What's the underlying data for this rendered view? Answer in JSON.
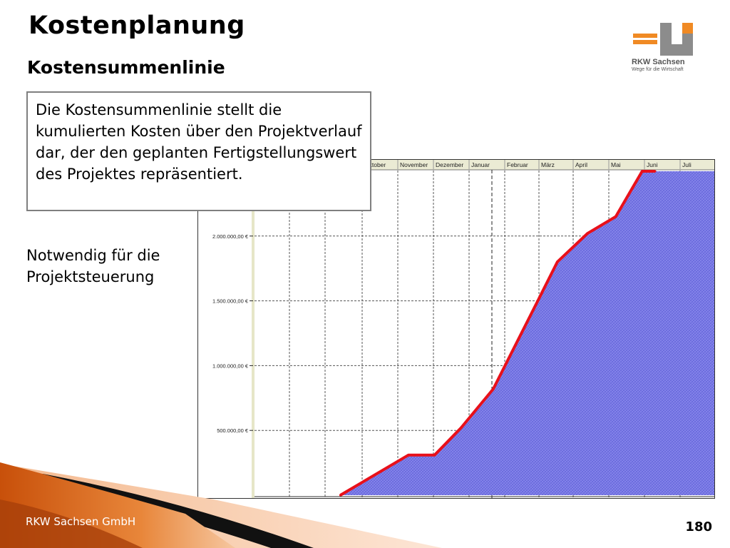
{
  "slide": {
    "title": "Kostenplanung",
    "subtitle": "Kostensummenlinie",
    "callout": "Die Kostensummenlinie stellt die kumulierten Kosten über den Projektverlauf dar, der den geplanten Fertigstellungswert des Projektes repräsentiert.",
    "note": "Notwendig für die Projektsteuerung",
    "footer": "RKW Sachsen GmbH",
    "page_number": "180"
  },
  "logo": {
    "name": "RKW Sachsen",
    "tagline": "Wege für die Wirtschaft"
  },
  "colors": {
    "accent_orange": "#e36c0a",
    "logo_orange": "#f08a24",
    "logo_gray": "#8c8c8c",
    "area_fill": "#7b7be6",
    "line": "#e8101a",
    "header_band": "#ebebd4"
  },
  "chart_data": {
    "type": "area",
    "title": "",
    "categories": [
      "Oktober",
      "November",
      "Dezember",
      "Januar",
      "Februar",
      "März",
      "April",
      "Mai",
      "Juni",
      "Juli"
    ],
    "y_ticks": [
      {
        "value": 500000,
        "label": "500.000,00 €"
      },
      {
        "value": 1000000,
        "label": "1.000.000,00 €"
      },
      {
        "value": 1500000,
        "label": "1.500.000,00 €"
      },
      {
        "value": 2000000,
        "label": "2.000.000,00 €"
      }
    ],
    "ylim": [
      0,
      2500000
    ],
    "grid": true,
    "series": [
      {
        "points": [
          {
            "x": "2012-09-12",
            "y": 0
          },
          {
            "x": "2012-11-10",
            "y": 310000
          },
          {
            "x": "2012-12-02",
            "y": 310000
          },
          {
            "x": "2012-12-25",
            "y": 520000
          },
          {
            "x": "2013-01-22",
            "y": 820000
          },
          {
            "x": "2013-02-27",
            "y": 1500000
          },
          {
            "x": "2013-03-17",
            "y": 1800000
          },
          {
            "x": "2013-04-13",
            "y": 2020000
          },
          {
            "x": "2013-05-07",
            "y": 2150000
          },
          {
            "x": "2013-05-30",
            "y": 2500000
          },
          {
            "x": "2013-06-10",
            "y": 2500000
          }
        ]
      }
    ]
  }
}
